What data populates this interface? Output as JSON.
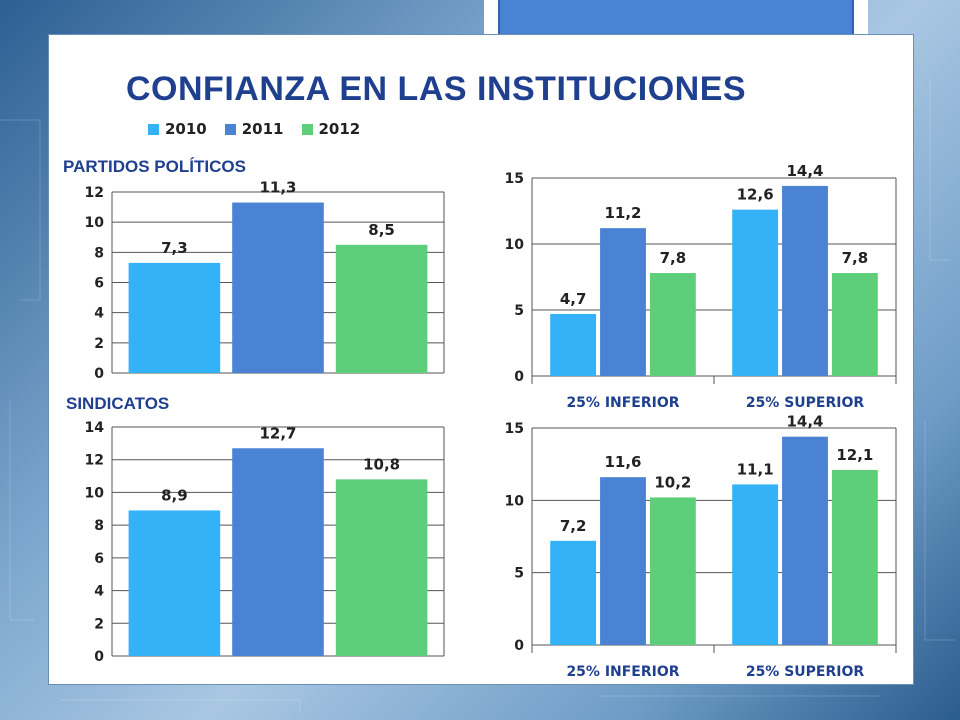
{
  "title": "CONFIANZA EN LAS INSTITUCIONES",
  "legend": [
    {
      "label": "2010",
      "color": "#33b2f7"
    },
    {
      "label": "2011",
      "color": "#4a82d4"
    },
    {
      "label": "2012",
      "color": "#5dcf7a"
    }
  ],
  "sections": {
    "partidos": "PARTIDOS POLÍTICOS",
    "sindicatos": "SINDICATOS"
  },
  "chart_data": [
    {
      "type": "bar",
      "categories": [
        ""
      ],
      "series": [
        {
          "name": "2010",
          "values": [
            7.3
          ],
          "labels": [
            "7,3"
          ],
          "color": "#33b2f7"
        },
        {
          "name": "2011",
          "values": [
            11.3
          ],
          "labels": [
            "11,3"
          ],
          "color": "#4a82d4"
        },
        {
          "name": "2012",
          "values": [
            8.5
          ],
          "labels": [
            "8,5"
          ],
          "color": "#5dcf7a"
        }
      ],
      "ylim": [
        0,
        12
      ],
      "yticks": [
        0,
        2,
        4,
        6,
        8,
        10,
        12
      ]
    },
    {
      "type": "bar",
      "categories": [
        "25% INFERIOR",
        "25% SUPERIOR"
      ],
      "series": [
        {
          "name": "2010",
          "values": [
            4.7,
            12.6
          ],
          "labels": [
            "4,7",
            "12,6"
          ],
          "color": "#33b2f7"
        },
        {
          "name": "2011",
          "values": [
            11.2,
            14.4
          ],
          "labels": [
            "11,2",
            "14,4"
          ],
          "color": "#4a82d4"
        },
        {
          "name": "2012",
          "values": [
            7.8,
            7.8
          ],
          "labels": [
            "7,8",
            "7,8"
          ],
          "color": "#5dcf7a"
        }
      ],
      "ylim": [
        0,
        15
      ],
      "yticks": [
        0,
        5,
        10,
        15
      ]
    },
    {
      "type": "bar",
      "categories": [
        ""
      ],
      "series": [
        {
          "name": "2010",
          "values": [
            8.9
          ],
          "labels": [
            "8,9"
          ],
          "color": "#33b2f7"
        },
        {
          "name": "2011",
          "values": [
            12.7
          ],
          "labels": [
            "12,7"
          ],
          "color": "#4a82d4"
        },
        {
          "name": "2012",
          "values": [
            10.8
          ],
          "labels": [
            "10,8"
          ],
          "color": "#5dcf7a"
        }
      ],
      "ylim": [
        0,
        14
      ],
      "yticks": [
        0,
        2,
        4,
        6,
        8,
        10,
        12,
        14
      ]
    },
    {
      "type": "bar",
      "categories": [
        "25% INFERIOR",
        "25% SUPERIOR"
      ],
      "series": [
        {
          "name": "2010",
          "values": [
            7.2,
            11.1
          ],
          "labels": [
            "7,2",
            "11,1"
          ],
          "color": "#33b2f7"
        },
        {
          "name": "2011",
          "values": [
            11.6,
            14.4
          ],
          "labels": [
            "11,6",
            "14,4"
          ],
          "color": "#4a82d4"
        },
        {
          "name": "2012",
          "values": [
            10.2,
            12.1
          ],
          "labels": [
            "10,2",
            "12,1"
          ],
          "color": "#5dcf7a"
        }
      ],
      "ylim": [
        0,
        15
      ],
      "yticks": [
        0,
        5,
        10,
        15
      ]
    }
  ]
}
